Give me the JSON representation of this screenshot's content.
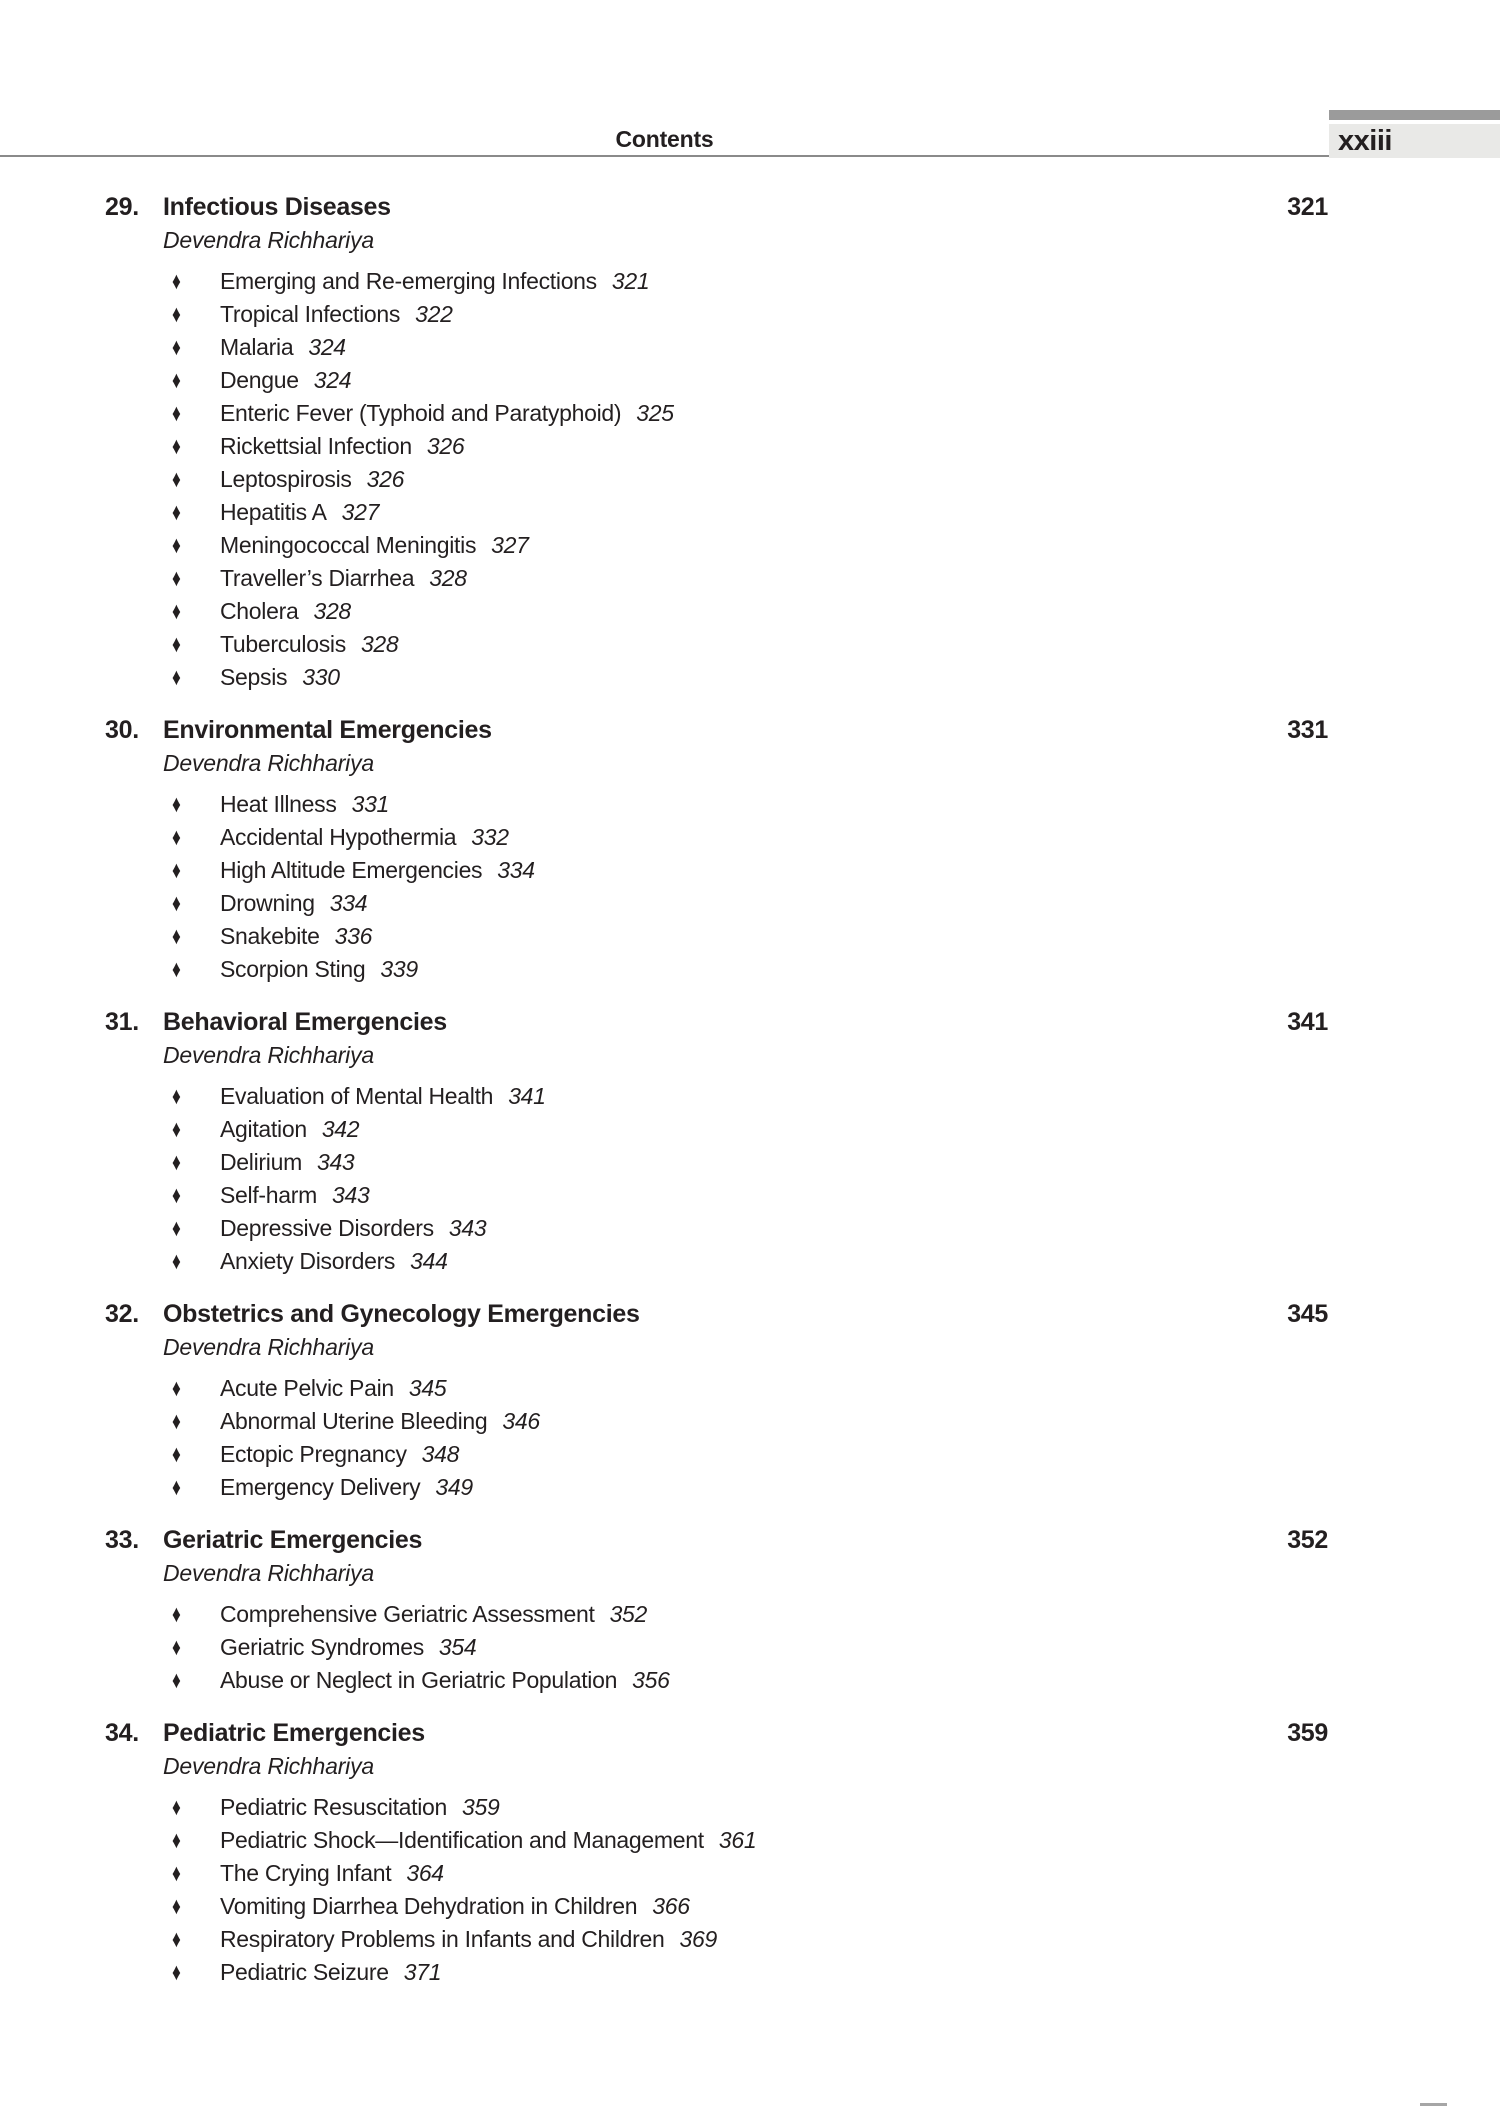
{
  "header": {
    "title": "Contents",
    "page_label": "xxiii"
  },
  "icons": {
    "diamond_bullet": "♦"
  },
  "colors": {
    "text": "#231f20",
    "tab_bar": "#9b9b9b",
    "tab_bg": "#e9e9e7",
    "rule": "#8a8a8a",
    "corner_mark": "#a6a6a6"
  },
  "chapters": [
    {
      "number": "29.",
      "title": "Infectious Diseases",
      "page": "321",
      "author": "Devendra Richhariya",
      "items": [
        {
          "label": "Emerging and Re-emerging Infections",
          "page": "321"
        },
        {
          "label": "Tropical Infections",
          "page": "322"
        },
        {
          "label": "Malaria",
          "page": "324"
        },
        {
          "label": "Dengue",
          "page": "324"
        },
        {
          "label": "Enteric Fever (Typhoid and Paratyphoid)",
          "page": "325"
        },
        {
          "label": "Rickettsial Infection",
          "page": "326"
        },
        {
          "label": "Leptospirosis",
          "page": "326"
        },
        {
          "label": "Hepatitis A",
          "page": "327"
        },
        {
          "label": "Meningococcal Meningitis",
          "page": "327"
        },
        {
          "label": "Traveller’s Diarrhea",
          "page": "328"
        },
        {
          "label": "Cholera",
          "page": "328"
        },
        {
          "label": "Tuberculosis",
          "page": "328"
        },
        {
          "label": "Sepsis",
          "page": "330"
        }
      ]
    },
    {
      "number": "30.",
      "title": "Environmental Emergencies",
      "page": "331",
      "author": "Devendra Richhariya",
      "items": [
        {
          "label": "Heat Illness",
          "page": "331"
        },
        {
          "label": "Accidental Hypothermia",
          "page": "332"
        },
        {
          "label": "High Altitude Emergencies",
          "page": "334"
        },
        {
          "label": "Drowning",
          "page": "334"
        },
        {
          "label": "Snakebite",
          "page": "336"
        },
        {
          "label": "Scorpion Sting",
          "page": "339"
        }
      ]
    },
    {
      "number": "31.",
      "title": "Behavioral Emergencies",
      "page": "341",
      "author": "Devendra Richhariya",
      "items": [
        {
          "label": "Evaluation of Mental Health",
          "page": "341"
        },
        {
          "label": "Agitation",
          "page": "342"
        },
        {
          "label": "Delirium",
          "page": "343"
        },
        {
          "label": "Self-harm",
          "page": "343"
        },
        {
          "label": "Depressive Disorders",
          "page": "343"
        },
        {
          "label": "Anxiety Disorders",
          "page": "344"
        }
      ]
    },
    {
      "number": "32.",
      "title": "Obstetrics and Gynecology Emergencies",
      "page": "345",
      "author": "Devendra Richhariya",
      "items": [
        {
          "label": "Acute Pelvic Pain",
          "page": "345"
        },
        {
          "label": "Abnormal Uterine Bleeding",
          "page": "346"
        },
        {
          "label": "Ectopic Pregnancy",
          "page": "348"
        },
        {
          "label": "Emergency Delivery",
          "page": "349"
        }
      ]
    },
    {
      "number": "33.",
      "title": "Geriatric Emergencies",
      "page": "352",
      "author": "Devendra Richhariya",
      "items": [
        {
          "label": "Comprehensive Geriatric Assessment",
          "page": "352"
        },
        {
          "label": "Geriatric Syndromes",
          "page": "354"
        },
        {
          "label": "Abuse or Neglect in Geriatric Population",
          "page": "356"
        }
      ]
    },
    {
      "number": "34.",
      "title": "Pediatric Emergencies",
      "page": "359",
      "author": "Devendra Richhariya",
      "items": [
        {
          "label": "Pediatric Resuscitation",
          "page": "359"
        },
        {
          "label": "Pediatric Shock—Identification and Management",
          "page": "361"
        },
        {
          "label": "The Crying Infant",
          "page": "364"
        },
        {
          "label": "Vomiting Diarrhea Dehydration in Children",
          "page": "366"
        },
        {
          "label": "Respiratory Problems in Infants and Children",
          "page": "369"
        },
        {
          "label": "Pediatric Seizure",
          "page": "371"
        }
      ]
    }
  ]
}
